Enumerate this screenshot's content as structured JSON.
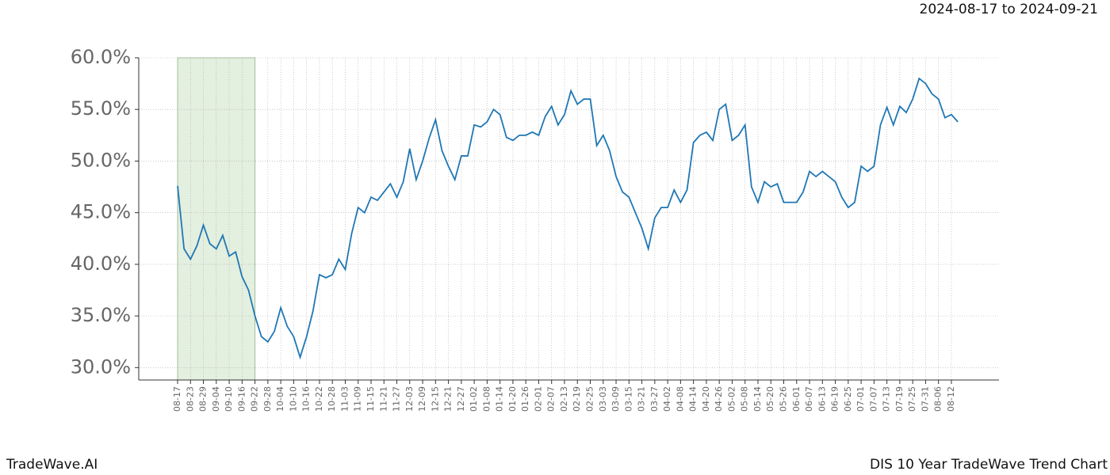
{
  "chart_data": {
    "type": "line",
    "subtitle": "2024-08-17 to 2024-09-21",
    "footer_left": "TradeWave.AI",
    "footer_right": "DIS 10 Year TradeWave Trend Chart",
    "categories": [
      "08-17",
      null,
      "08-23",
      null,
      "08-29",
      null,
      "09-04",
      null,
      "09-10",
      null,
      "09-16",
      null,
      "09-22",
      null,
      "09-28",
      null,
      "10-04",
      null,
      "10-10",
      null,
      "10-16",
      null,
      "10-22",
      null,
      "10-28",
      null,
      "11-03",
      null,
      "11-09",
      null,
      "11-15",
      null,
      "11-21",
      null,
      "11-27",
      null,
      "12-03",
      null,
      "12-09",
      null,
      "12-15",
      null,
      "12-21",
      null,
      "12-27",
      null,
      "01-02",
      null,
      "01-08",
      null,
      "01-14",
      null,
      "01-20",
      null,
      "01-26",
      null,
      "02-01",
      null,
      "02-07",
      null,
      "02-13",
      null,
      "02-19",
      null,
      "02-25",
      null,
      "03-03",
      null,
      "03-09",
      null,
      "03-15",
      null,
      "03-21",
      null,
      "03-27",
      null,
      "04-02",
      null,
      "04-08",
      null,
      "04-14",
      null,
      "04-20",
      null,
      "04-26",
      null,
      "05-02",
      null,
      "05-08",
      null,
      "05-14",
      null,
      "05-20",
      null,
      "05-26",
      null,
      "06-01",
      null,
      "06-07",
      null,
      "06-13",
      null,
      "06-19",
      null,
      "06-25",
      null,
      "07-01",
      null,
      "07-07",
      null,
      "07-13",
      null,
      "07-19",
      null,
      "07-25",
      null,
      "07-31",
      null,
      "08-06",
      null,
      "08-12",
      null
    ],
    "series": [
      {
        "color": "#1f77b4",
        "values": [
          47.6,
          41.5,
          40.5,
          41.8,
          43.8,
          42,
          41.5,
          42.8,
          40.8,
          41.2,
          38.8,
          37.5,
          35,
          33,
          32.5,
          33.5,
          35.8,
          34,
          33,
          31,
          33,
          35.5,
          39,
          38.7,
          39,
          40.5,
          39.5,
          43,
          45.5,
          45,
          46.5,
          46.2,
          47,
          47.8,
          46.5,
          48,
          51.2,
          48.2,
          50,
          52.2,
          54,
          51,
          49.5,
          48.2,
          50.5,
          50.5,
          53.5,
          53.3,
          53.8,
          55,
          54.5,
          52.3,
          52,
          52.5,
          52.5,
          52.8,
          52.5,
          54.3,
          55.3,
          53.5,
          54.5,
          56.8,
          55.5,
          56,
          56,
          51.5,
          52.5,
          51,
          48.5,
          47,
          46.5,
          45,
          43.5,
          41.5,
          44.5,
          45.5,
          45.5,
          47.2,
          46,
          47.2,
          51.8,
          52.5,
          52.8,
          52,
          55,
          55.5,
          52,
          52.5,
          53.5,
          47.5,
          46,
          48,
          47.5,
          47.8,
          46,
          46,
          46,
          47,
          49,
          48.5,
          49,
          48.5,
          48,
          46.5,
          45.5,
          46,
          49.5,
          49,
          49.5,
          53.5,
          55.2,
          53.5,
          55.3,
          54.7,
          56,
          58,
          57.5,
          56.5,
          56,
          54.2,
          54.5,
          53.8
        ]
      }
    ],
    "highlight_range": [
      0,
      12
    ],
    "highlight_color": "#e3efdf",
    "ylim": [
      28.8,
      60
    ],
    "yticks": [
      {
        "value": 30,
        "label": "30.0%"
      },
      {
        "value": 35,
        "label": "35.0%"
      },
      {
        "value": 40,
        "label": "40.0%"
      },
      {
        "value": 45,
        "label": "45.0%"
      },
      {
        "value": 50,
        "label": "50.0%"
      },
      {
        "value": 55,
        "label": "55.0%"
      },
      {
        "value": 60,
        "label": "60.0%"
      }
    ],
    "grid": true
  }
}
